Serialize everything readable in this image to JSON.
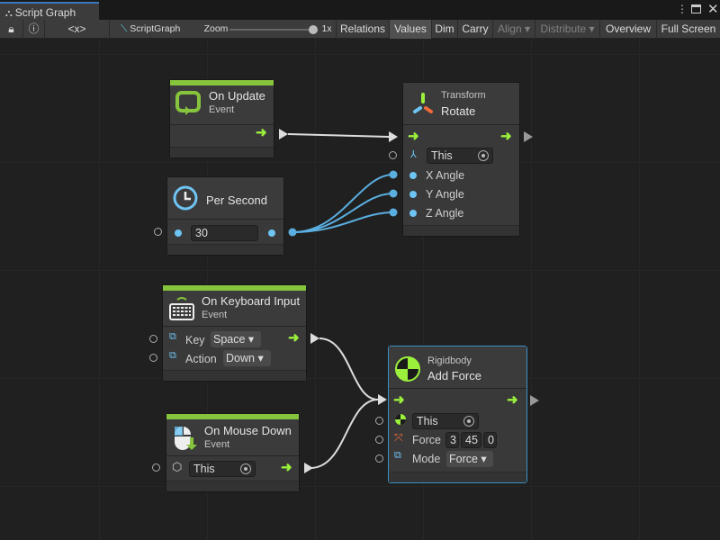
{
  "window": {
    "tab_title": "Script Graph",
    "more_icon": "kebab-icon",
    "maximize_icon": "maximize-icon",
    "close_icon": "close-icon"
  },
  "toolbar": {
    "lock_icon": "lock-icon",
    "info_icon": "info-icon",
    "variables_label": "<x>",
    "graph_name": "ScriptGraph",
    "zoom_label": "Zoom",
    "zoom_value": "1x",
    "zoom_level": 1.0,
    "buttons": [
      {
        "label": "Relations"
      },
      {
        "label": "Values",
        "active": true
      },
      {
        "label": "Dim"
      },
      {
        "label": "Carry"
      },
      {
        "label": "Align ▾",
        "disabled": true
      },
      {
        "label": "Distribute ▾",
        "disabled": true
      },
      {
        "label": "Overview"
      },
      {
        "label": "Full Screen"
      }
    ]
  },
  "colors": {
    "event_bar": "#85c43c",
    "flow_arrow": "#9bf03c",
    "value_port": "#6ec4f2",
    "selected_border": "#3a8fc4"
  },
  "nodes": {
    "on_update": {
      "title": "On Update",
      "subtitle": "Event"
    },
    "rotate": {
      "category": "Transform",
      "title": "Rotate",
      "target": "This",
      "inputs": [
        "X Angle",
        "Y Angle",
        "Z Angle"
      ]
    },
    "per_second": {
      "title": "Per Second",
      "value": "30"
    },
    "keyboard": {
      "title": "On Keyboard Input",
      "subtitle": "Event",
      "key_label": "Key",
      "key_value": "Space",
      "action_label": "Action",
      "action_value": "Down"
    },
    "mouse_down": {
      "title": "On Mouse Down",
      "subtitle": "Event",
      "target": "This"
    },
    "add_force": {
      "category": "Rigidbody",
      "title": "Add Force",
      "target": "This",
      "force_label": "Force",
      "force": [
        "3",
        "45",
        "0"
      ],
      "mode_label": "Mode",
      "mode_value": "Force"
    }
  }
}
